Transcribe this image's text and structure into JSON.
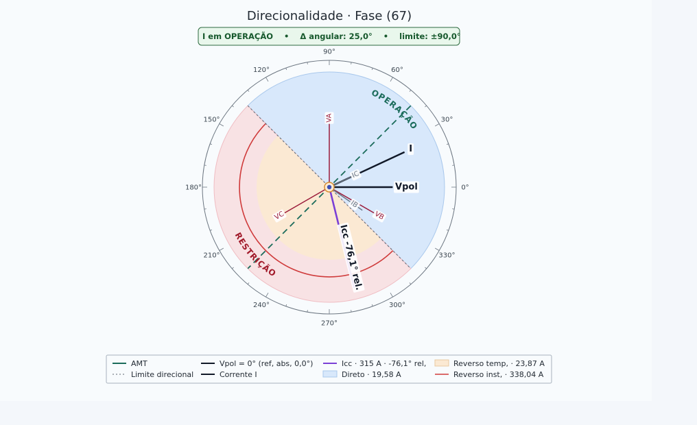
{
  "chart_data": {
    "type": "polar",
    "title": "Direcionalidade · Fase (67)",
    "status_badge": {
      "status": "I em OPERAÇÃO",
      "delta": "Δ angular: 25,0°",
      "limit": "limite: ±90,0°",
      "separator": "•"
    },
    "angle_ticks": [
      {
        "deg": 0,
        "label": "0°"
      },
      {
        "deg": 30,
        "label": "30°"
      },
      {
        "deg": 60,
        "label": "60°"
      },
      {
        "deg": 90,
        "label": "90°"
      },
      {
        "deg": 120,
        "label": "120°"
      },
      {
        "deg": 150,
        "label": "150°"
      },
      {
        "deg": 180,
        "label": "180°"
      },
      {
        "deg": 210,
        "label": "210°"
      },
      {
        "deg": 240,
        "label": "240°"
      },
      {
        "deg": 270,
        "label": "270°"
      },
      {
        "deg": 300,
        "label": "300°"
      },
      {
        "deg": 330,
        "label": "330°"
      }
    ],
    "zones": {
      "operation_label": "OPERAÇÃO",
      "restriction_label": "RESTRIÇÃO",
      "direct_from_deg": -45,
      "direct_to_deg": 135
    },
    "vectors": [
      {
        "key": "vpol",
        "label": "Vpol",
        "angle_deg": 0,
        "magnitude": 0.55,
        "color": "#101827"
      },
      {
        "key": "i",
        "label": "I",
        "angle_deg": 25,
        "magnitude": 0.72,
        "color": "#101827"
      },
      {
        "key": "va",
        "label": "VA",
        "angle_deg": 90,
        "magnitude": 0.6,
        "color": "#9b1b3a"
      },
      {
        "key": "vb",
        "label": "VB",
        "angle_deg": -30,
        "magnitude": 0.5,
        "color": "#9b1b3a"
      },
      {
        "key": "vc",
        "label": "VC",
        "angle_deg": 210,
        "magnitude": 0.5,
        "color": "#9b1b3a"
      },
      {
        "key": "ib",
        "label": "IB",
        "angle_deg": -35,
        "magnitude": 0.35,
        "color": "#6b7785"
      },
      {
        "key": "ic",
        "label": "IC",
        "angle_deg": 25,
        "magnitude": 0.28,
        "color": "#6b7785"
      },
      {
        "key": "icc",
        "label": "Icc -76,1° rel.",
        "angle_deg": -76.1,
        "magnitude": 0.9,
        "color": "#7a3fd6"
      }
    ],
    "amt_angle_deg": 45,
    "legend": [
      {
        "key": "amt",
        "label": "AMT",
        "color": "#1a6b5a"
      },
      {
        "key": "limit",
        "label": "Limite direcional",
        "color": "#5a6470"
      },
      {
        "key": "vpol",
        "label": "Vpol = 0° (ref, abs, 0,0°)",
        "color": "#101827"
      },
      {
        "key": "current",
        "label": "Corrente I",
        "color": "#101827"
      },
      {
        "key": "icc",
        "label": "Icc · 315 A · -76,1° rel,",
        "color": "#7a3fd6"
      },
      {
        "key": "direct",
        "label": "Direto · 19,58 A",
        "color": "#d8e8fb"
      },
      {
        "key": "rev_temp",
        "label": "Reverso temp, · 23,87 A",
        "color": "#fbe9d3"
      },
      {
        "key": "rev_inst",
        "label": "Reverso inst, · 338,04 A",
        "color": "#cf3a3a"
      }
    ],
    "colors": {
      "direct_fill": "#d8e8fb",
      "direct_stroke": "#a9c8ec",
      "reverse_fill": "#f8e2e4",
      "reverse_stroke": "#efbcc2",
      "rev_temp_fill": "#fbe9d3",
      "rev_inst_stroke": "#cf3a3a",
      "amt": "#1a6b5a",
      "restriction_text": "#a11a2a"
    }
  }
}
